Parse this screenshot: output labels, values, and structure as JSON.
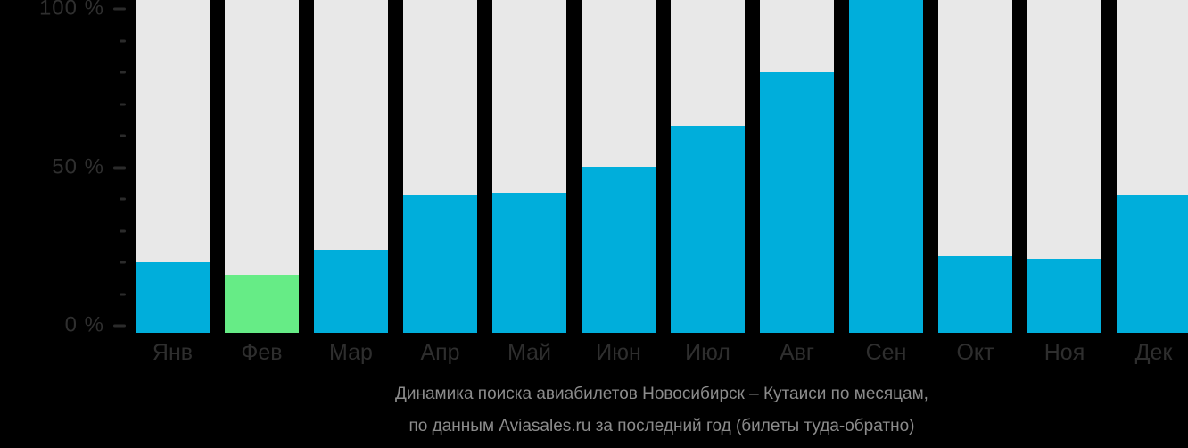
{
  "chart_data": {
    "type": "bar",
    "title": "Динамика поиска авиабилетов Новосибирск – Кутаиси по месяцам,",
    "subtitle": "по данным Aviasales.ru за последний год (билеты туда-обратно)",
    "categories": [
      "Янв",
      "Фев",
      "Мар",
      "Апр",
      "Май",
      "Июн",
      "Июл",
      "Авг",
      "Сен",
      "Окт",
      "Ноя",
      "Дек"
    ],
    "values": [
      20,
      16,
      24,
      41,
      42,
      50,
      63,
      80,
      100,
      22,
      21,
      41
    ],
    "unit": "%",
    "highlight": {
      "index": 1,
      "category": "Фев"
    },
    "xlabel": "",
    "ylabel": "",
    "ylim": [
      0,
      100
    ],
    "yticks_major": [
      {
        "value": 100,
        "label": "100 %"
      },
      {
        "value": 50,
        "label": "50 %"
      },
      {
        "value": 0,
        "label": "0 %"
      }
    ],
    "yticks_minor": [
      10,
      20,
      30,
      40,
      60,
      70,
      80,
      90
    ],
    "grid": false,
    "legend": "none",
    "colors": {
      "background": "#000000",
      "bar_fill": "#00AEDB",
      "bar_highlight": "#66EC86",
      "bar_track": "#E8E8E8",
      "axis_text": "#2F2F2F",
      "tick_mark": "#2B2B2B",
      "caption_text": "#8C8C8C"
    }
  }
}
